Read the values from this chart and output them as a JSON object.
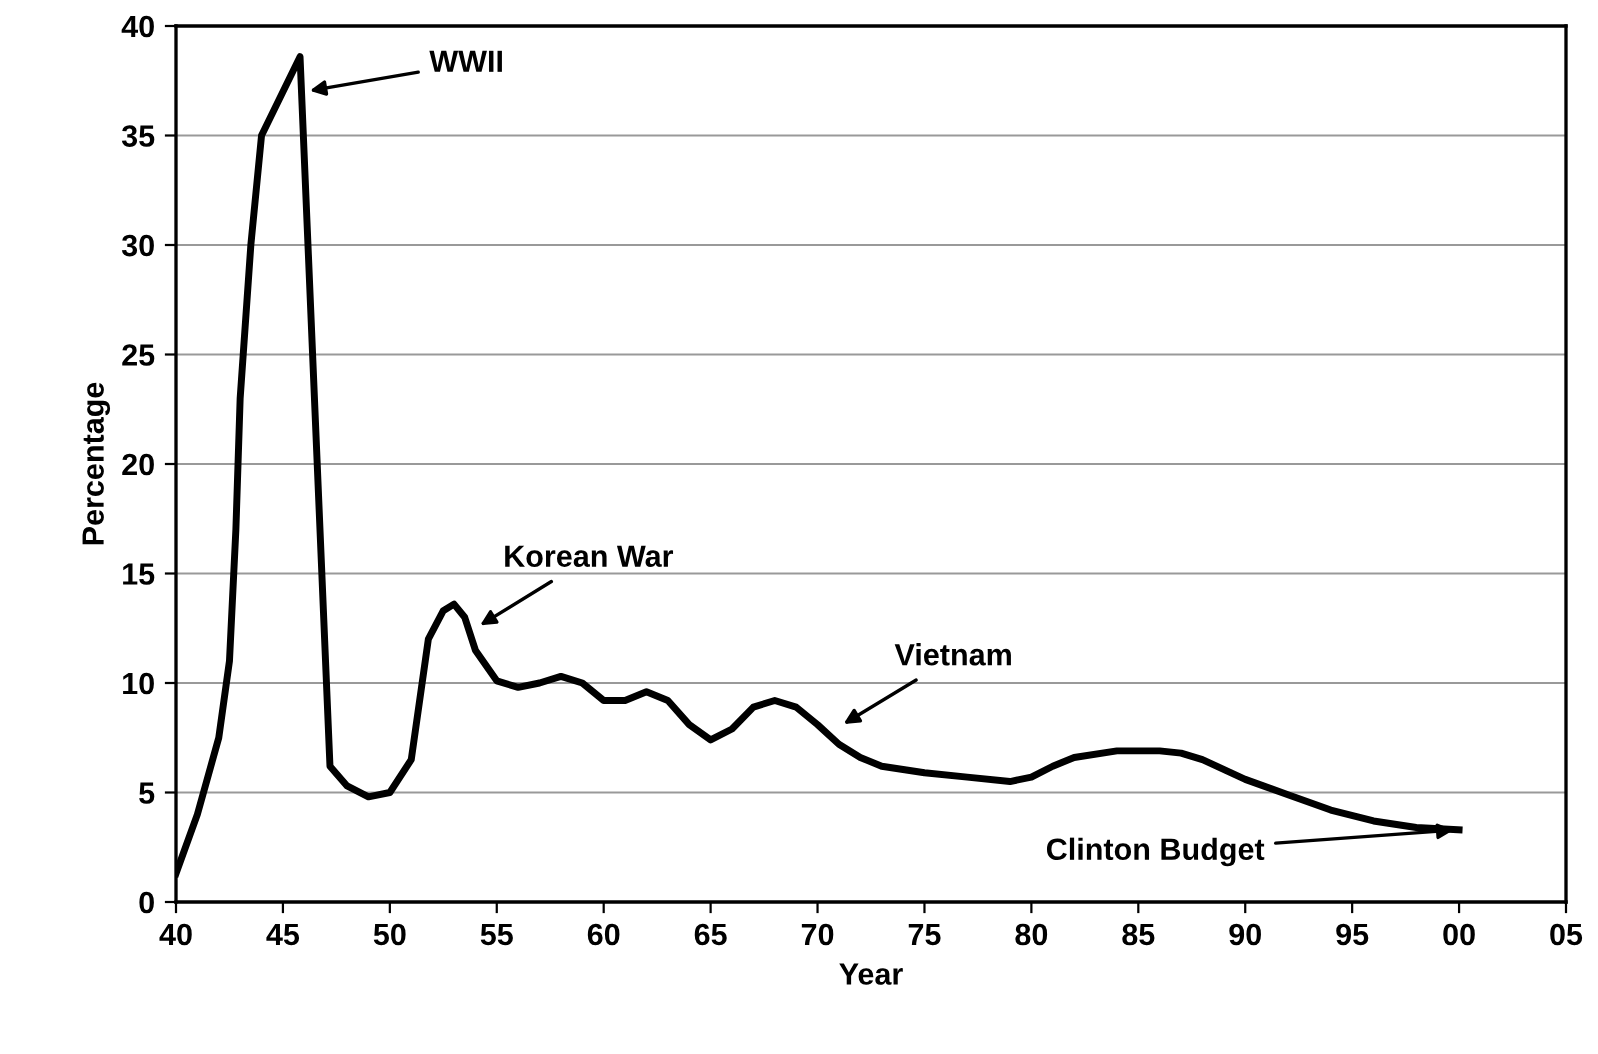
{
  "chart_data": {
    "type": "line",
    "xlabel": "Year",
    "ylabel": "Percentage",
    "x": [
      1940,
      1941,
      1942,
      1942.5,
      1942.8,
      1943,
      1943.5,
      1944,
      1945,
      1945.8,
      1947.2,
      1948,
      1949,
      1950,
      1951,
      1951.8,
      1952.5,
      1953,
      1953.5,
      1954,
      1955,
      1956,
      1957,
      1958,
      1959,
      1960,
      1961,
      1962,
      1963,
      1964,
      1965,
      1966,
      1967,
      1968,
      1969,
      1970,
      1971,
      1972,
      1973,
      1975,
      1977,
      1979,
      1980,
      1981,
      1982,
      1984,
      1986,
      1987,
      1988,
      1990,
      1992,
      1994,
      1996,
      1998,
      2000
    ],
    "series": [
      {
        "color": "#000000",
        "values": [
          1.3,
          4,
          7.5,
          11,
          17,
          23,
          30,
          35,
          37,
          38.6,
          6.2,
          5.3,
          4.8,
          5.0,
          6.5,
          12,
          13.3,
          13.6,
          13,
          11.5,
          10.1,
          9.8,
          10.0,
          10.3,
          10.0,
          9.2,
          9.2,
          9.6,
          9.2,
          8.1,
          7.4,
          7.9,
          8.9,
          9.2,
          8.9,
          8.1,
          7.2,
          6.6,
          6.2,
          5.9,
          5.7,
          5.5,
          5.7,
          6.2,
          6.6,
          6.9,
          6.9,
          6.8,
          6.5,
          5.6,
          4.9,
          4.2,
          3.7,
          3.4,
          3.3
        ]
      }
    ],
    "xlim": [
      1940,
      2005
    ],
    "xticks": [
      {
        "value": 1940,
        "label": "40"
      },
      {
        "value": 1945,
        "label": "45"
      },
      {
        "value": 1950,
        "label": "50"
      },
      {
        "value": 1955,
        "label": "55"
      },
      {
        "value": 1960,
        "label": "60"
      },
      {
        "value": 1965,
        "label": "65"
      },
      {
        "value": 1970,
        "label": "70"
      },
      {
        "value": 1975,
        "label": "75"
      },
      {
        "value": 1980,
        "label": "80"
      },
      {
        "value": 1985,
        "label": "85"
      },
      {
        "value": 1990,
        "label": "90"
      },
      {
        "value": 1995,
        "label": "95"
      },
      {
        "value": 2000,
        "label": "00"
      },
      {
        "value": 2005,
        "label": "05"
      }
    ],
    "ylim": [
      0,
      40
    ],
    "yticks": [
      0,
      5,
      10,
      15,
      20,
      25,
      30,
      35,
      40
    ],
    "grid": "y",
    "marker": "none",
    "line_style": "solid",
    "annotations": [
      {
        "text": "WWII",
        "x": 1946,
        "y": 37
      },
      {
        "text": "Korean War",
        "x": 1954,
        "y": 12.5
      },
      {
        "text": "Vietnam",
        "x": 1971,
        "y": 8
      },
      {
        "text": "Clinton Budget",
        "x": 2000,
        "y": 3.3
      }
    ]
  }
}
